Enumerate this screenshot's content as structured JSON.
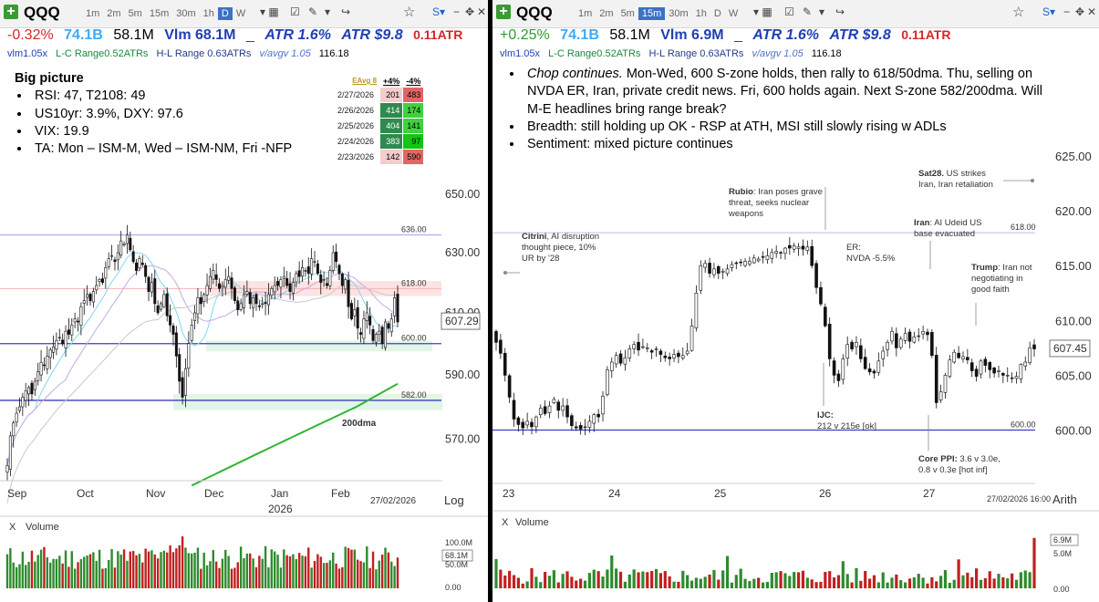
{
  "left": {
    "toolbar": {
      "symbol": "QQQ",
      "timeframes": [
        "1m",
        "2m",
        "5m",
        "15m",
        "30m",
        "1h",
        "D",
        "W"
      ],
      "active_timeframe": "D"
    },
    "quote": {
      "change": "-0.32%",
      "dollar_volume": "74.1B",
      "volume": "58.1M",
      "vlm": "Vlm 68.1M",
      "atr_pct": "ATR 1.6%",
      "atr_dollar": "ATR $9.8",
      "atr_x": "0.11ATR"
    },
    "stats": {
      "vlm_x": "vlm1.05x",
      "lc": "L-C Range0.52ATRs",
      "hl": "H-L Range 0.63ATRs",
      "vavg": "v/avgv 1.05",
      "last": "116.18"
    },
    "notes": {
      "title": "Big picture",
      "bullets": [
        "RSI: 47, T2108: 49",
        "US10yr: 3.9%, DXY: 97.6",
        "VIX: 19.9",
        "TA: Mon – ISM-M, Wed – ISM-NM, Fri -NFP"
      ]
    },
    "range_table": {
      "badge": "EAvg 8",
      "headers": [
        "+4%",
        "-4%"
      ],
      "rows": [
        {
          "date": "2/27/2026",
          "up": "201",
          "down": "483"
        },
        {
          "date": "2/26/2026",
          "up": "414",
          "down": "174"
        },
        {
          "date": "2/25/2026",
          "up": "404",
          "down": "141"
        },
        {
          "date": "2/24/2026",
          "up": "383",
          "down": "97"
        },
        {
          "date": "2/23/2026",
          "up": "142",
          "down": "590"
        }
      ]
    },
    "last_price": "607.29",
    "scale_label": "Log",
    "date_stamp": "27/02/2026",
    "year_label": "2026",
    "volume_label": "Volume",
    "volume_axis": [
      "100.0M",
      "68.1M",
      "50.0M",
      "0.00"
    ],
    "chart_data": {
      "type": "candlestick",
      "timeframe": "daily",
      "scale": "log",
      "y_ticks": [
        570,
        590,
        610,
        630,
        650
      ],
      "ylim": [
        558,
        660
      ],
      "x_ticks": [
        "Sep",
        "Oct",
        "Nov",
        "Dec",
        "Jan",
        "Feb"
      ],
      "levels": [
        {
          "label": "636.00",
          "value": 636
        },
        {
          "label": "618.00",
          "value": 618
        },
        {
          "label": "600.00",
          "value": 600
        },
        {
          "label": "582.00",
          "value": 582
        }
      ],
      "annotations": [
        "200dma"
      ],
      "close": [
        562,
        571,
        575,
        578,
        580,
        583,
        585,
        586,
        584,
        588,
        591,
        594,
        593,
        596,
        598,
        599,
        601,
        602,
        600,
        604,
        603,
        606,
        608,
        607,
        612,
        614,
        616,
        614,
        617,
        619,
        621,
        620,
        625,
        628,
        629,
        627,
        630,
        634,
        633,
        636,
        631,
        627,
        624,
        628,
        626,
        622,
        617,
        620,
        613,
        610,
        613,
        616,
        609,
        606,
        603,
        596,
        588,
        583,
        592,
        600,
        606,
        610,
        615,
        613,
        616,
        619,
        622,
        624,
        621,
        618,
        619,
        621,
        622,
        618,
        614,
        611,
        613,
        616,
        617,
        613,
        615,
        613,
        612,
        613,
        613,
        616,
        618,
        619,
        619,
        621,
        622,
        619,
        617,
        620,
        623,
        622,
        625,
        624,
        623,
        628,
        627,
        623,
        620,
        621,
        619,
        624,
        630,
        627,
        623,
        619,
        621,
        612,
        608,
        611,
        605,
        603,
        608,
        610,
        606,
        601,
        603,
        604,
        600,
        607,
        605,
        608,
        615,
        607
      ]
    }
  },
  "right": {
    "toolbar": {
      "symbol": "QQQ",
      "timeframes": [
        "1m",
        "2m",
        "5m",
        "15m",
        "30m",
        "1h",
        "D",
        "W"
      ],
      "active_timeframe": "15m"
    },
    "quote": {
      "change": "+0.25%",
      "dollar_volume": "74.1B",
      "volume": "58.1M",
      "vlm": "Vlm 6.9M",
      "atr_pct": "ATR 1.6%",
      "atr_dollar": "ATR $9.8",
      "atr_x": "0.11ATR"
    },
    "stats": {
      "vlm_x": "vlm1.05x",
      "lc": "L-C Range0.52ATRs",
      "hl": "H-L Range 0.63ATRs",
      "vavg": "v/avgv 1.05",
      "last": "116.18"
    },
    "notes": {
      "bullets": [
        {
          "lead": "Chop continues.",
          "text": "  Mon-Wed, 600 S-zone holds, then rally to 618/50dma.  Thu, selling on NVDA ER, Iran, private credit news. Fri, 600 holds again. Next S-zone 582/200dma.  Will M-E headlines bring range break?"
        },
        {
          "lead": "",
          "text": "Breadth: still holding up OK - RSP at ATH, MSI still slowly rising w ADLs"
        },
        {
          "lead": "",
          "text": "Sentiment: mixed picture continues"
        }
      ]
    },
    "last_price": "607.45",
    "scale_label": "Arith",
    "date_stamp": "27/02/2026 16:00",
    "volume_label": "Volume",
    "volume_axis": [
      "6.9M",
      "5.0M",
      "0.00"
    ],
    "events": [
      {
        "bold": "Citrini",
        "text": ", AI disruption thought piece, 10% UR by '28"
      },
      {
        "bold": "Rubio",
        "text": ": Iran poses grave threat, seeks nuclear weapons"
      },
      {
        "bold": "",
        "text": "ER: NVDA -5.5%"
      },
      {
        "bold": "Sat28.",
        "text": " US strikes Iran, Iran retaliation"
      },
      {
        "bold": "Iran",
        "text": ": AI Udeid US base evacuated"
      },
      {
        "bold": "Trump",
        "text": ": Iran not negotiating in good faith"
      },
      {
        "bold": "IJC:",
        "text": " 212 v 215e [ok]"
      },
      {
        "bold": "Core PPI:",
        "text": " 3.6 v 3.0e, 0.8 v 0.3e [hot inf]"
      }
    ],
    "chart_data": {
      "type": "candlestick",
      "timeframe": "15m",
      "scale": "linear",
      "y_ticks": [
        600,
        605,
        610,
        615,
        620,
        625
      ],
      "ylim": [
        595.3,
        628
      ],
      "x_ticks": [
        "23",
        "24",
        "25",
        "26",
        "27"
      ],
      "levels": [
        {
          "label": "618.00",
          "value": 618
        },
        {
          "label": "600.00",
          "value": 600
        }
      ],
      "close": [
        608,
        607,
        605,
        603,
        601,
        600.5,
        600.2,
        600.8,
        600.3,
        601.2,
        602,
        601.5,
        602.2,
        602.8,
        601.8,
        602.2,
        601.2,
        600.4,
        600.2,
        600.1,
        600.3,
        600.8,
        601.4,
        601.2,
        603.1,
        605.5,
        606.2,
        606.8,
        606.1,
        606.6,
        607.4,
        607.8,
        607.3,
        607.6,
        607.5,
        607.1,
        607.4,
        606.9,
        606.6,
        606.5,
        606.9,
        606.7,
        606.8,
        607.2,
        609.5,
        612.5,
        615,
        615.2,
        614.3,
        614.7,
        614.3,
        614.5,
        614.7,
        615.1,
        615.2,
        615.3,
        615.4,
        615.4,
        615.7,
        615.6,
        615.8,
        615.9,
        616.2,
        616.3,
        616.2,
        616.6,
        616.6,
        616.8,
        616.7,
        616.5,
        616.7,
        615,
        613,
        611.5,
        609.5,
        606.5,
        605,
        604.5,
        606.5,
        607.8,
        607.4,
        608,
        606.5,
        605.6,
        605.3,
        605.2,
        606.3,
        607.2,
        608,
        609,
        607.5,
        608.3,
        608.8,
        608.1,
        608.5,
        608.6,
        609,
        608.7,
        606.8,
        602.5,
        603.5,
        605,
        606.4,
        607.1,
        606.6,
        606.7,
        606.4,
        605.4,
        604.9,
        606.3,
        605.9,
        605.5,
        605.2,
        605.4,
        605,
        605,
        604.7,
        604.9,
        606,
        606.2,
        607.5,
        607.4
      ]
    }
  }
}
